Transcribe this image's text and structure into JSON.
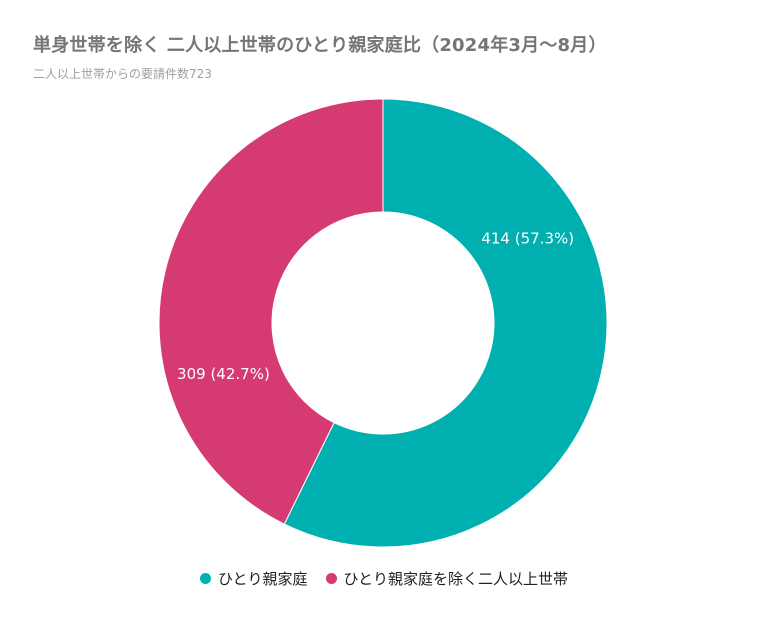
{
  "header": {
    "title": "単身世帯を除く 二人以上世帯のひとり親家庭比（2024年3月～8月）",
    "subtitle": "二人以上世帯からの要請件数723"
  },
  "chart_data": {
    "type": "pie",
    "donut": true,
    "title": "単身世帯を除く 二人以上世帯のひとり親家庭比（2024年3月～8月）",
    "subtitle": "二人以上世帯からの要請件数723",
    "total": 723,
    "slices": [
      {
        "name": "ひとり親家庭",
        "value": 414,
        "percent": 57.3,
        "label": "414 (57.3%)",
        "color": "#00b0b1"
      },
      {
        "name": "ひとり親家庭を除く二人以上世帯",
        "value": 309,
        "percent": 42.7,
        "label": "309 (42.7%)",
        "color": "#d63a73"
      }
    ],
    "legend_position": "bottom"
  }
}
